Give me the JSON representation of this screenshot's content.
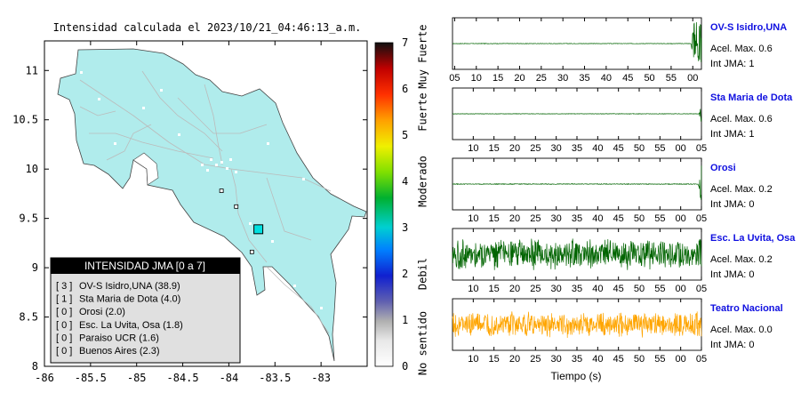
{
  "map": {
    "title": "Intensidad calculada el 2023/10/21_04:46:13_a.m.",
    "x_ticks": [
      "-86",
      "-85.5",
      "-85",
      "-84.5",
      "-84",
      "-83.5",
      "-83"
    ],
    "y_ticks": [
      "11",
      "10.5",
      "10",
      "9.5",
      "9",
      "8.5",
      "8"
    ],
    "xlim": [
      -86,
      -82.5
    ],
    "ylim": [
      8,
      11.3
    ],
    "land_color": "#b0ecec",
    "epicenter": {
      "lon": -83.68,
      "lat": 9.39
    },
    "stations": [
      {
        "lon": -84.08,
        "lat": 9.78
      },
      {
        "lon": -83.92,
        "lat": 9.62
      },
      {
        "lon": -83.75,
        "lat": 9.16
      }
    ]
  },
  "legend": {
    "title": "INTENSIDAD JMA [0 a 7]",
    "items": [
      {
        "code": "[ 3 ]",
        "label": "OV-S Isidro,UNA (38.9)"
      },
      {
        "code": "[ 1 ]",
        "label": "Sta Maria de Dota (4.0)"
      },
      {
        "code": "[ 0 ]",
        "label": "Orosi (2.0)"
      },
      {
        "code": "[ 0 ]",
        "label": "Esc. La Uvita, Osa (1.8)"
      },
      {
        "code": "[ 0 ]",
        "label": "Paraiso UCR (1.6)"
      },
      {
        "code": "[ 0 ]",
        "label": "Buenos Aires (2.3)"
      }
    ]
  },
  "colorbar": {
    "ticks": [
      "0",
      "1",
      "2",
      "3",
      "4",
      "5",
      "6",
      "7"
    ],
    "range": [
      0,
      7
    ],
    "categories": [
      {
        "label": "No sentido",
        "center": 0.5
      },
      {
        "label": "Debil",
        "center": 2.0
      },
      {
        "label": "Moderado",
        "center": 4.0
      },
      {
        "label": "Fuerte",
        "center": 5.5
      },
      {
        "label": "Muy Fuerte",
        "center": 6.7
      }
    ]
  },
  "chart_data": {
    "type": "line",
    "xlabel": "Tiempo (s)",
    "series": [
      {
        "name": "OV-S Isidro,UNA",
        "accel_label": "Acel. Max. 0.6",
        "jma_label": "Int JMA: 1",
        "color": "#006400",
        "ticks": [
          "05",
          "10",
          "15",
          "20",
          "25",
          "30",
          "35",
          "40",
          "45",
          "50",
          "55",
          "00"
        ],
        "tick_start": 5,
        "tick_end": 60,
        "xmin": 4.5,
        "xmax": 62,
        "noise": 0.01,
        "burst_start": 59.5,
        "burst_amp": 0.9
      },
      {
        "name": "Sta Maria de Dota",
        "accel_label": "Acel. Max. 0.6",
        "jma_label": "Int JMA: 1",
        "color": "#006400",
        "ticks": [
          "10",
          "15",
          "20",
          "25",
          "30",
          "35",
          "40",
          "45",
          "50",
          "55",
          "00",
          "05"
        ],
        "tick_start": 10,
        "tick_end": 65,
        "xmin": 5,
        "xmax": 65,
        "noise": 0.01,
        "burst_start": 64.4,
        "burst_amp": 0.8
      },
      {
        "name": "Orosi",
        "accel_label": "Acel. Max. 0.2",
        "jma_label": "Int JMA: 0",
        "color": "#006400",
        "ticks": [
          "10",
          "15",
          "20",
          "25",
          "30",
          "35",
          "40",
          "45",
          "50",
          "55",
          "00",
          "05"
        ],
        "tick_start": 10,
        "tick_end": 65,
        "xmin": 5,
        "xmax": 65,
        "noise": 0.015,
        "burst_start": 64.2,
        "burst_amp": 0.85
      },
      {
        "name": "Esc. La Uvita, Osa",
        "accel_label": "Acel. Max. 0.2",
        "jma_label": "Int JMA: 0",
        "color": "#006400",
        "ticks": [
          "10",
          "15",
          "20",
          "25",
          "30",
          "35",
          "40",
          "45",
          "50",
          "55",
          "00",
          "05"
        ],
        "tick_start": 10,
        "tick_end": 65,
        "xmin": 5,
        "xmax": 65,
        "noise": 0.55,
        "burst_start": 99,
        "burst_amp": 0
      },
      {
        "name": "Teatro Nacional",
        "accel_label": "Acel. Max. 0.0",
        "jma_label": "Int JMA: 0",
        "color": "#ffa500",
        "ticks": [
          "10",
          "15",
          "20",
          "25",
          "30",
          "35",
          "40",
          "45",
          "50",
          "55",
          "00",
          "05"
        ],
        "tick_start": 10,
        "tick_end": 65,
        "xmin": 5,
        "xmax": 65,
        "noise": 0.45,
        "burst_start": 99,
        "burst_amp": 0
      }
    ]
  }
}
